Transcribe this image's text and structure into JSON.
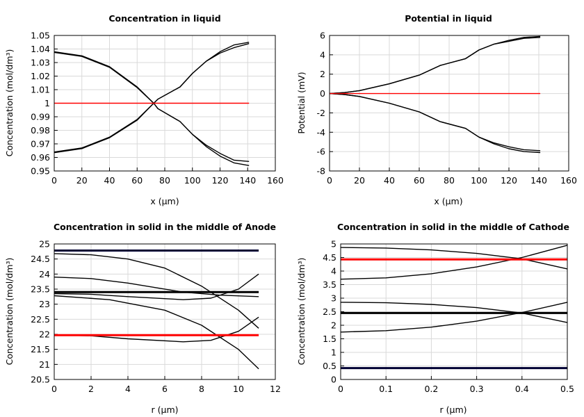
{
  "chart_data": [
    {
      "type": "line",
      "title": "Concentration in liquid",
      "xlabel": "x (µm)",
      "ylabel": "Concentration (mol/dm³)",
      "xlim": [
        0,
        160
      ],
      "ylim": [
        0.95,
        1.05
      ],
      "xticks": [
        0,
        20,
        40,
        60,
        80,
        100,
        120,
        140,
        160
      ],
      "yticks": [
        0.95,
        0.96,
        0.97,
        0.98,
        0.99,
        1,
        1.01,
        1.02,
        1.03,
        1.04,
        1.05
      ],
      "grid": true,
      "series": [
        {
          "color": "#000000",
          "x": [
            0,
            20,
            40,
            60,
            72,
            75,
            91,
            100,
            110,
            120,
            130,
            141
          ],
          "y": [
            1.038,
            1.035,
            1.027,
            1.012,
            1.0,
            0.996,
            0.9865,
            0.977,
            0.969,
            0.963,
            0.958,
            0.957
          ]
        },
        {
          "color": "#000000",
          "x": [
            0,
            20,
            40,
            60,
            72,
            75,
            91,
            100,
            110,
            120,
            130,
            141
          ],
          "y": [
            1.0375,
            1.0345,
            1.0265,
            1.0115,
            1.0,
            0.996,
            0.9865,
            0.977,
            0.968,
            0.961,
            0.956,
            0.954
          ]
        },
        {
          "color": "#000000",
          "x": [
            0,
            20,
            40,
            60,
            72,
            75,
            91,
            100,
            110,
            120,
            130,
            141
          ],
          "y": [
            0.964,
            0.967,
            0.975,
            0.988,
            1.0,
            1.003,
            1.012,
            1.022,
            1.031,
            1.038,
            1.043,
            1.045
          ]
        },
        {
          "color": "#000000",
          "x": [
            0,
            20,
            40,
            60,
            72,
            75,
            91,
            100,
            110,
            120,
            130,
            141
          ],
          "y": [
            0.9635,
            0.9665,
            0.9745,
            0.9875,
            1.0,
            1.003,
            1.012,
            1.022,
            1.031,
            1.037,
            1.041,
            1.044
          ]
        },
        {
          "color": "#ff0000",
          "x": [
            0,
            141
          ],
          "y": [
            1.0,
            1.0
          ]
        }
      ]
    },
    {
      "type": "line",
      "title": "Potential in liquid",
      "xlabel": "x (µm)",
      "ylabel": "Potential (mV)",
      "xlim": [
        0,
        160
      ],
      "ylim": [
        -8,
        6
      ],
      "xticks": [
        0,
        20,
        40,
        60,
        80,
        100,
        120,
        140,
        160
      ],
      "yticks": [
        -8,
        -6,
        -4,
        -2,
        0,
        2,
        4,
        6
      ],
      "grid": true,
      "series": [
        {
          "color": "#000000",
          "x": [
            0,
            10,
            20,
            40,
            60,
            74,
            91,
            100,
            110,
            120,
            130,
            141
          ],
          "y": [
            0,
            0.1,
            0.3,
            1.0,
            1.9,
            2.9,
            3.6,
            4.5,
            5.1,
            5.5,
            5.8,
            5.9
          ]
        },
        {
          "color": "#000000",
          "x": [
            0,
            10,
            20,
            40,
            60,
            74,
            91,
            100,
            110,
            120,
            130,
            141
          ],
          "y": [
            0,
            0.1,
            0.3,
            1.0,
            1.9,
            2.9,
            3.6,
            4.5,
            5.1,
            5.4,
            5.7,
            5.8
          ]
        },
        {
          "color": "#000000",
          "x": [
            0,
            10,
            20,
            40,
            60,
            74,
            91,
            100,
            110,
            120,
            130,
            141
          ],
          "y": [
            0,
            -0.1,
            -0.3,
            -1.0,
            -1.9,
            -2.9,
            -3.6,
            -4.5,
            -5.1,
            -5.5,
            -5.8,
            -5.9
          ]
        },
        {
          "color": "#000000",
          "x": [
            0,
            10,
            20,
            40,
            60,
            74,
            91,
            100,
            110,
            120,
            130,
            141
          ],
          "y": [
            0,
            -0.1,
            -0.3,
            -1.0,
            -1.9,
            -2.9,
            -3.6,
            -4.5,
            -5.2,
            -5.7,
            -6.0,
            -6.1
          ]
        },
        {
          "color": "#ff0000",
          "x": [
            0,
            141
          ],
          "y": [
            0,
            0
          ]
        }
      ]
    },
    {
      "type": "line",
      "title": "Concentration in solid in the middle of Anode",
      "xlabel": "r (µm)",
      "ylabel": "Concentration (mol/dm³)",
      "xlim": [
        0,
        12
      ],
      "ylim": [
        20.5,
        25
      ],
      "xticks": [
        0,
        2,
        4,
        6,
        8,
        10,
        12
      ],
      "yticks": [
        20.5,
        21,
        21.5,
        22,
        22.5,
        23,
        23.5,
        24,
        24.5,
        25
      ],
      "grid": true,
      "series": [
        {
          "color": "#000033",
          "thick": true,
          "x": [
            0,
            11.1
          ],
          "y": [
            24.78,
            24.78
          ]
        },
        {
          "color": "#000000",
          "x": [
            0,
            2,
            4,
            6,
            8,
            10,
            11.1
          ],
          "y": [
            24.68,
            24.64,
            24.5,
            24.2,
            23.6,
            22.8,
            22.2
          ]
        },
        {
          "color": "#000000",
          "x": [
            0,
            2,
            4,
            7,
            9,
            11.1
          ],
          "y": [
            23.9,
            23.85,
            23.7,
            23.4,
            23.3,
            23.25
          ]
        },
        {
          "color": "#000000",
          "x": [
            0,
            2,
            4,
            7,
            8.5,
            10,
            11.1
          ],
          "y": [
            23.35,
            23.33,
            23.25,
            23.15,
            23.2,
            23.5,
            24.0
          ]
        },
        {
          "color": "#000000",
          "x": [
            0,
            3,
            6,
            8,
            10,
            11.1
          ],
          "y": [
            23.28,
            23.15,
            22.8,
            22.3,
            21.5,
            20.85
          ]
        },
        {
          "color": "#000000",
          "x": [
            0,
            2,
            4,
            7,
            8.5,
            10,
            11.1
          ],
          "y": [
            21.98,
            21.95,
            21.85,
            21.75,
            21.8,
            22.1,
            22.57
          ]
        },
        {
          "color": "#000000",
          "thick": true,
          "x": [
            0,
            11.1
          ],
          "y": [
            23.4,
            23.4
          ]
        },
        {
          "color": "#ff0000",
          "thick": true,
          "x": [
            0,
            11.1
          ],
          "y": [
            21.97,
            21.97
          ]
        }
      ]
    },
    {
      "type": "line",
      "title": "Concentration in solid in the middle of Cathode",
      "xlabel": "r (µm)",
      "ylabel": "Concentration (mol/dm³)",
      "xlim": [
        0,
        0.5
      ],
      "ylim": [
        0,
        5
      ],
      "xticks": [
        0,
        0.1,
        0.2,
        0.3,
        0.4,
        0.5
      ],
      "yticks": [
        0,
        0.5,
        1,
        1.5,
        2,
        2.5,
        3,
        3.5,
        4,
        4.5,
        5
      ],
      "grid": true,
      "series": [
        {
          "color": "#000000",
          "x": [
            0,
            0.1,
            0.2,
            0.3,
            0.4,
            0.5
          ],
          "y": [
            4.87,
            4.85,
            4.78,
            4.65,
            4.45,
            4.08
          ]
        },
        {
          "color": "#000000",
          "x": [
            0,
            0.1,
            0.2,
            0.3,
            0.4,
            0.5
          ],
          "y": [
            3.7,
            3.75,
            3.9,
            4.15,
            4.5,
            4.95
          ]
        },
        {
          "color": "#000000",
          "x": [
            0,
            0.1,
            0.2,
            0.3,
            0.4,
            0.5
          ],
          "y": [
            2.85,
            2.83,
            2.77,
            2.65,
            2.45,
            2.1
          ]
        },
        {
          "color": "#000000",
          "x": [
            0,
            0.1,
            0.2,
            0.3,
            0.4,
            0.5
          ],
          "y": [
            1.75,
            1.8,
            1.93,
            2.15,
            2.47,
            2.85
          ]
        },
        {
          "color": "#000000",
          "thick": true,
          "x": [
            0,
            0.5
          ],
          "y": [
            2.45,
            2.45
          ]
        },
        {
          "color": "#ff0000",
          "thick": true,
          "x": [
            0,
            0.5
          ],
          "y": [
            4.43,
            4.43
          ]
        },
        {
          "color": "#000033",
          "thick": true,
          "x": [
            0,
            0.5
          ],
          "y": [
            0.42,
            0.42
          ]
        }
      ]
    }
  ]
}
